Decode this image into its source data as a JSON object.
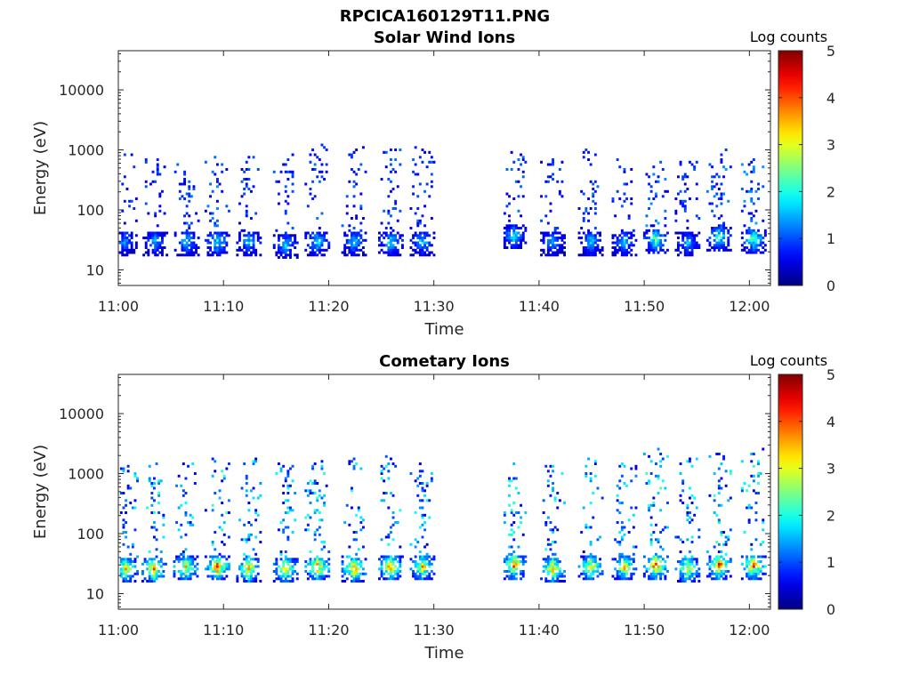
{
  "figure": {
    "suptitle": "RPCICA160129T11.PNG"
  },
  "chart_data": [
    {
      "type": "heatmap",
      "title": "Solar Wind Ions",
      "xlabel": "Time",
      "ylabel": "Energy (eV)",
      "x_ticks": [
        "11:00",
        "11:10",
        "11:20",
        "11:30",
        "11:40",
        "11:50",
        "12:00"
      ],
      "y_ticks": [
        "10",
        "100",
        "1000",
        "10000"
      ],
      "y_scale": "log",
      "ylim": [
        5.5,
        45000
      ],
      "xlim_minutes": [
        0,
        62
      ],
      "data_gap_minutes": [
        30,
        36.5
      ],
      "colorbar": {
        "label": "Log counts",
        "range": [
          0,
          5
        ],
        "ticks": [
          "0",
          "1",
          "2",
          "3",
          "4",
          "5"
        ]
      },
      "bursts": [
        {
          "t": 0.5,
          "e_peak": 32,
          "level": 1.2,
          "upper": 900
        },
        {
          "t": 3.4,
          "e_peak": 32,
          "level": 1.3,
          "upper": 700
        },
        {
          "t": 6.4,
          "e_peak": 32,
          "level": 1.5,
          "upper": 600
        },
        {
          "t": 9.3,
          "e_peak": 32,
          "level": 1.8,
          "upper": 900
        },
        {
          "t": 12.3,
          "e_peak": 32,
          "level": 1.4,
          "upper": 900
        },
        {
          "t": 15.8,
          "e_peak": 28,
          "level": 1.4,
          "upper": 900
        },
        {
          "t": 18.8,
          "e_peak": 32,
          "level": 1.6,
          "upper": 1200
        },
        {
          "t": 22.3,
          "e_peak": 32,
          "level": 1.5,
          "upper": 1200
        },
        {
          "t": 25.8,
          "e_peak": 32,
          "level": 1.6,
          "upper": 1000
        },
        {
          "t": 28.8,
          "e_peak": 32,
          "level": 1.5,
          "upper": 1300
        },
        {
          "t": 37.5,
          "e_peak": 40,
          "level": 1.6,
          "upper": 1000
        },
        {
          "t": 41.2,
          "e_peak": 32,
          "level": 1.3,
          "upper": 700
        },
        {
          "t": 44.8,
          "e_peak": 32,
          "level": 1.5,
          "upper": 1000
        },
        {
          "t": 48.0,
          "e_peak": 32,
          "level": 1.4,
          "upper": 900
        },
        {
          "t": 51.0,
          "e_peak": 35,
          "level": 2.0,
          "upper": 700
        },
        {
          "t": 54.0,
          "e_peak": 30,
          "level": 1.4,
          "upper": 800
        },
        {
          "t": 57.0,
          "e_peak": 38,
          "level": 1.9,
          "upper": 1000
        },
        {
          "t": 60.3,
          "e_peak": 35,
          "level": 2.0,
          "upper": 700
        }
      ]
    },
    {
      "type": "heatmap",
      "title": "Cometary Ions",
      "xlabel": "Time",
      "ylabel": "Energy (eV)",
      "x_ticks": [
        "11:00",
        "11:10",
        "11:20",
        "11:30",
        "11:40",
        "11:50",
        "12:00"
      ],
      "y_ticks": [
        "10",
        "100",
        "1000",
        "10000"
      ],
      "y_scale": "log",
      "ylim": [
        5.5,
        45000
      ],
      "xlim_minutes": [
        0,
        62
      ],
      "data_gap_minutes": [
        30,
        36.5
      ],
      "colorbar": {
        "label": "Log counts",
        "range": [
          0,
          5
        ],
        "ticks": [
          "0",
          "1",
          "2",
          "3",
          "4",
          "5"
        ]
      },
      "bursts": [
        {
          "t": 0.6,
          "e_peak": 28,
          "level": 2.8,
          "upper": 1500
        },
        {
          "t": 3.3,
          "e_peak": 28,
          "level": 3.2,
          "upper": 1500
        },
        {
          "t": 6.3,
          "e_peak": 30,
          "level": 3.0,
          "upper": 1500
        },
        {
          "t": 9.3,
          "e_peak": 30,
          "level": 3.4,
          "upper": 1800
        },
        {
          "t": 12.3,
          "e_peak": 28,
          "level": 3.0,
          "upper": 1800
        },
        {
          "t": 15.8,
          "e_peak": 28,
          "level": 2.9,
          "upper": 1500
        },
        {
          "t": 18.8,
          "e_peak": 30,
          "level": 3.3,
          "upper": 2000
        },
        {
          "t": 22.3,
          "e_peak": 28,
          "level": 3.2,
          "upper": 1800
        },
        {
          "t": 25.8,
          "e_peak": 30,
          "level": 3.2,
          "upper": 2000
        },
        {
          "t": 28.8,
          "e_peak": 30,
          "level": 2.9,
          "upper": 1500
        },
        {
          "t": 37.5,
          "e_peak": 32,
          "level": 3.3,
          "upper": 1500
        },
        {
          "t": 41.2,
          "e_peak": 28,
          "level": 3.1,
          "upper": 1500
        },
        {
          "t": 44.8,
          "e_peak": 30,
          "level": 3.0,
          "upper": 1800
        },
        {
          "t": 48.0,
          "e_peak": 30,
          "level": 2.9,
          "upper": 1500
        },
        {
          "t": 51.0,
          "e_peak": 32,
          "level": 3.5,
          "upper": 2500
        },
        {
          "t": 54.0,
          "e_peak": 28,
          "level": 2.9,
          "upper": 1800
        },
        {
          "t": 57.0,
          "e_peak": 32,
          "level": 3.5,
          "upper": 2500
        },
        {
          "t": 60.3,
          "e_peak": 32,
          "level": 3.4,
          "upper": 2500
        }
      ]
    }
  ]
}
